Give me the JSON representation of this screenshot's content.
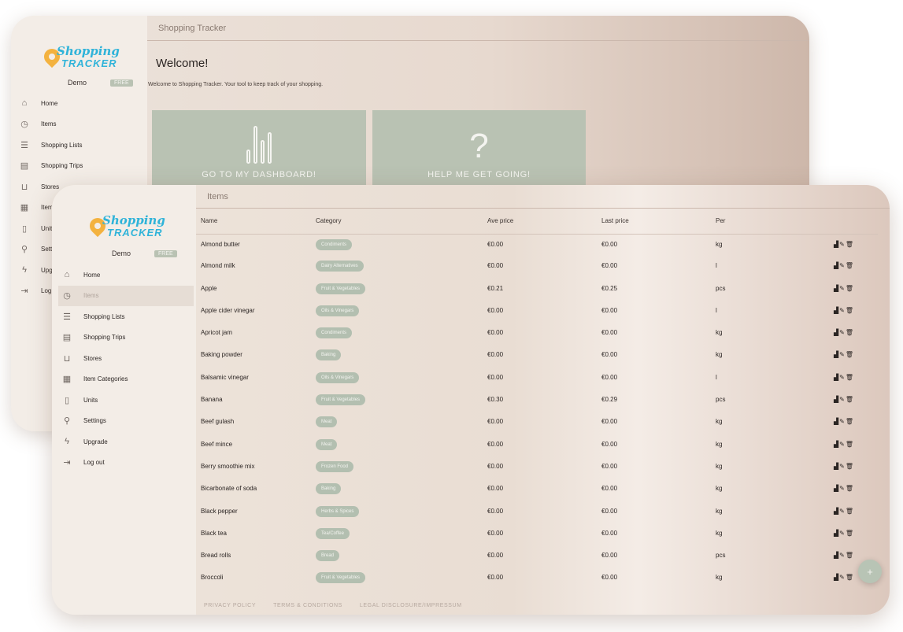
{
  "back": {
    "title": "Shopping Tracker",
    "logo": {
      "line1": "Shopping",
      "line2": "TRACKER"
    },
    "user": {
      "name": "Demo",
      "badge": "FREE"
    },
    "nav": [
      {
        "label": "Home",
        "icon": "home-icon",
        "glyph": "⌂"
      },
      {
        "label": "Items",
        "icon": "items-icon",
        "glyph": "◷"
      },
      {
        "label": "Shopping Lists",
        "icon": "list-icon",
        "glyph": "☰"
      },
      {
        "label": "Shopping Trips",
        "icon": "trips-icon",
        "glyph": "▤"
      },
      {
        "label": "Stores",
        "icon": "cart-icon",
        "glyph": "⊔"
      },
      {
        "label": "Item",
        "icon": "categories-icon",
        "glyph": "▦"
      },
      {
        "label": "Unit",
        "icon": "units-icon",
        "glyph": "▯"
      },
      {
        "label": "Sett",
        "icon": "settings-icon",
        "glyph": "⚲"
      },
      {
        "label": "Upg",
        "icon": "upgrade-icon",
        "glyph": "ϟ"
      },
      {
        "label": "Log",
        "icon": "logout-icon",
        "glyph": "⇥"
      }
    ],
    "welcome": "Welcome!",
    "welcome_text": "Welcome to Shopping Tracker. Your tool to keep track of your shopping.",
    "tiles": [
      {
        "label": "GO TO MY DASHBOARD!",
        "icon": "bar-chart-icon"
      },
      {
        "label": "HELP ME GET GOING!",
        "icon": "question-icon",
        "glyph": "?"
      }
    ]
  },
  "front": {
    "title": "Items",
    "logo": {
      "line1": "Shopping",
      "line2": "TRACKER"
    },
    "user": {
      "name": "Demo",
      "badge": "FREE"
    },
    "nav": [
      {
        "label": "Home",
        "icon": "home-icon",
        "glyph": "⌂"
      },
      {
        "label": "Items",
        "icon": "items-icon",
        "glyph": "◷",
        "active": true
      },
      {
        "label": "Shopping Lists",
        "icon": "list-icon",
        "glyph": "☰"
      },
      {
        "label": "Shopping Trips",
        "icon": "trips-icon",
        "glyph": "▤"
      },
      {
        "label": "Stores",
        "icon": "cart-icon",
        "glyph": "⊔"
      },
      {
        "label": "Item Categories",
        "icon": "categories-icon",
        "glyph": "▦"
      },
      {
        "label": "Units",
        "icon": "units-icon",
        "glyph": "▯"
      },
      {
        "label": "Settings",
        "icon": "settings-icon",
        "glyph": "⚲"
      },
      {
        "label": "Upgrade",
        "icon": "upgrade-icon",
        "glyph": "ϟ"
      },
      {
        "label": "Log out",
        "icon": "logout-icon",
        "glyph": "⇥"
      }
    ],
    "columns": [
      "Name",
      "Category",
      "Ave price",
      "Last price",
      "Per"
    ],
    "actions_glyph": "▟✎🗑",
    "rows": [
      {
        "name": "Almond butter",
        "category": "Condiments",
        "ave": "€0.00",
        "last": "€0.00",
        "per": "kg"
      },
      {
        "name": "Almond milk",
        "category": "Dairy Alternatives",
        "ave": "€0.00",
        "last": "€0.00",
        "per": "l"
      },
      {
        "name": "Apple",
        "category": "Fruit & Vegetables",
        "ave": "€0.21",
        "last": "€0.25",
        "per": "pcs"
      },
      {
        "name": "Apple cider vinegar",
        "category": "Oils & Vinegars",
        "ave": "€0.00",
        "last": "€0.00",
        "per": "l"
      },
      {
        "name": "Apricot jam",
        "category": "Condiments",
        "ave": "€0.00",
        "last": "€0.00",
        "per": "kg"
      },
      {
        "name": "Baking powder",
        "category": "Baking",
        "ave": "€0.00",
        "last": "€0.00",
        "per": "kg"
      },
      {
        "name": "Balsamic vinegar",
        "category": "Oils & Vinegars",
        "ave": "€0.00",
        "last": "€0.00",
        "per": "l"
      },
      {
        "name": "Banana",
        "category": "Fruit & Vegetables",
        "ave": "€0.30",
        "last": "€0.29",
        "per": "pcs"
      },
      {
        "name": "Beef gulash",
        "category": "Meat",
        "ave": "€0.00",
        "last": "€0.00",
        "per": "kg"
      },
      {
        "name": "Beef mince",
        "category": "Meat",
        "ave": "€0.00",
        "last": "€0.00",
        "per": "kg"
      },
      {
        "name": "Berry smoothie mix",
        "category": "Frozen Food",
        "ave": "€0.00",
        "last": "€0.00",
        "per": "kg"
      },
      {
        "name": "Bicarbonate of soda",
        "category": "Baking",
        "ave": "€0.00",
        "last": "€0.00",
        "per": "kg"
      },
      {
        "name": "Black pepper",
        "category": "Herbs & Spices",
        "ave": "€0.00",
        "last": "€0.00",
        "per": "kg"
      },
      {
        "name": "Black tea",
        "category": "Tea/Coffee",
        "ave": "€0.00",
        "last": "€0.00",
        "per": "kg"
      },
      {
        "name": "Bread rolls",
        "category": "Bread",
        "ave": "€0.00",
        "last": "€0.00",
        "per": "pcs"
      },
      {
        "name": "Broccoli",
        "category": "Fruit & Vegetables",
        "ave": "€0.00",
        "last": "€0.00",
        "per": "kg"
      }
    ],
    "footer": [
      "PRIVACY POLICY",
      "TERMS & CONDITIONS",
      "LEGAL DISCLOSURE/IMPRESSUM"
    ],
    "fab_label": "+"
  }
}
